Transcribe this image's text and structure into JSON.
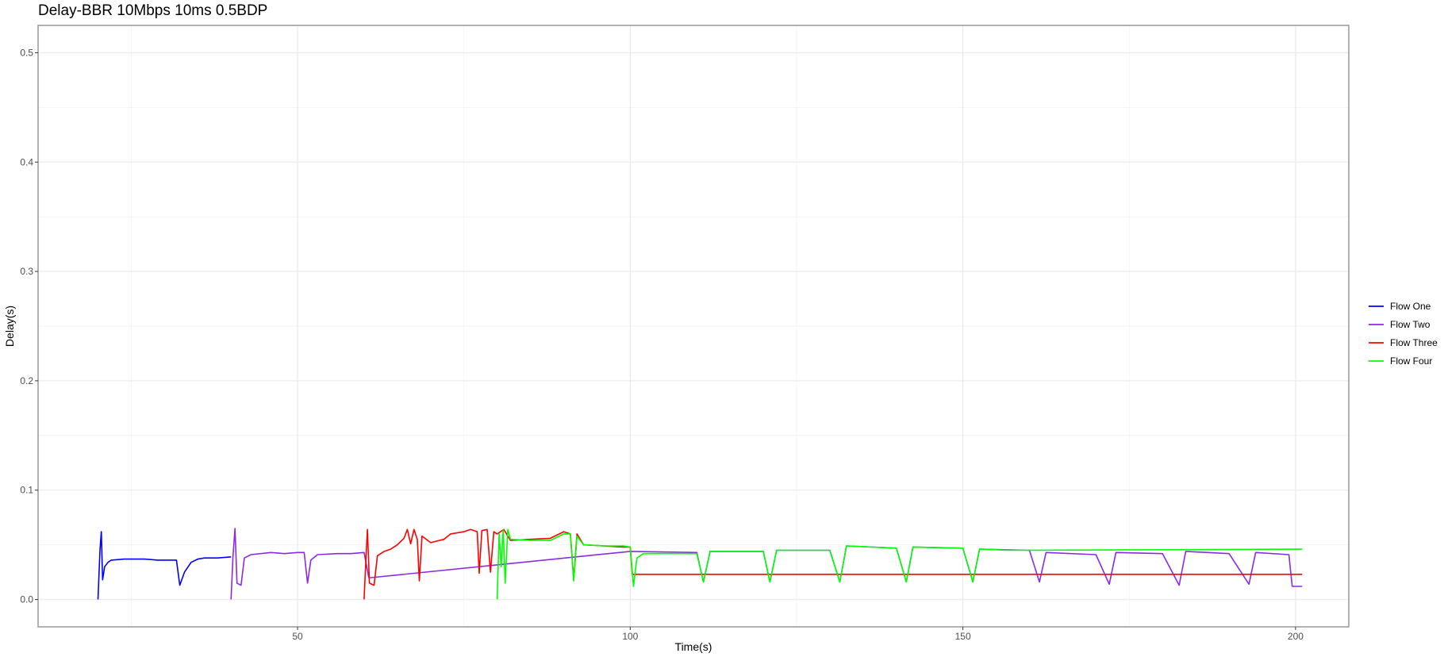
{
  "chart_data": {
    "type": "line",
    "title": "Delay-BBR 10Mbps 10ms 0.5BDP",
    "xlabel": "Time(s)",
    "ylabel": "Delay(s)",
    "xlim": [
      11,
      208
    ],
    "ylim": [
      -0.025,
      0.525
    ],
    "x_ticks": [
      50,
      100,
      150,
      200
    ],
    "y_ticks": [
      0.0,
      0.1,
      0.2,
      0.3,
      0.4,
      0.5
    ],
    "x_tick_labels": [
      "50",
      "100",
      "150",
      "200"
    ],
    "y_tick_labels": [
      "0.0",
      "0.1",
      "0.2",
      "0.3",
      "0.4",
      "0.5"
    ],
    "grid": true,
    "legend_position": "right",
    "series": [
      {
        "name": "Flow One",
        "color": "#0000ff",
        "points": [
          [
            20,
            0.0
          ],
          [
            20.3,
            0.045
          ],
          [
            20.5,
            0.062
          ],
          [
            20.7,
            0.018
          ],
          [
            21,
            0.03
          ],
          [
            21.5,
            0.034
          ],
          [
            22,
            0.036
          ],
          [
            24,
            0.037
          ],
          [
            27,
            0.037
          ],
          [
            29,
            0.036
          ],
          [
            31,
            0.036
          ],
          [
            31.8,
            0.036
          ],
          [
            32.3,
            0.013
          ],
          [
            33,
            0.025
          ],
          [
            34,
            0.034
          ],
          [
            35,
            0.037
          ],
          [
            36,
            0.038
          ],
          [
            38,
            0.038
          ],
          [
            40,
            0.039
          ]
        ]
      },
      {
        "name": "Flow Two",
        "color": "#8a2be2",
        "points": [
          [
            40,
            0.0
          ],
          [
            40.3,
            0.04
          ],
          [
            40.6,
            0.065
          ],
          [
            40.9,
            0.015
          ],
          [
            41.5,
            0.013
          ],
          [
            42,
            0.038
          ],
          [
            43,
            0.041
          ],
          [
            46,
            0.043
          ],
          [
            48,
            0.042
          ],
          [
            50,
            0.043
          ],
          [
            51,
            0.043
          ],
          [
            51.5,
            0.015
          ],
          [
            52,
            0.036
          ],
          [
            53,
            0.041
          ],
          [
            56,
            0.042
          ],
          [
            58,
            0.042
          ],
          [
            60,
            0.043
          ],
          [
            60.7,
            0.02
          ],
          [
            61,
            0.02
          ],
          [
            100,
            0.044
          ],
          [
            110,
            0.043
          ],
          [
            111,
            0.016
          ],
          [
            112,
            0.044
          ],
          [
            120,
            0.044
          ],
          [
            121,
            0.016
          ],
          [
            122,
            0.045
          ],
          [
            130,
            0.045
          ],
          [
            131.5,
            0.016
          ],
          [
            132.5,
            0.049
          ],
          [
            140,
            0.047
          ],
          [
            141.5,
            0.016
          ],
          [
            142.5,
            0.048
          ],
          [
            150,
            0.047
          ],
          [
            151.5,
            0.016
          ],
          [
            152.5,
            0.046
          ],
          [
            160,
            0.045
          ],
          [
            161.5,
            0.016
          ],
          [
            162.5,
            0.043
          ],
          [
            170,
            0.041
          ],
          [
            172,
            0.014
          ],
          [
            173,
            0.043
          ],
          [
            180,
            0.042
          ],
          [
            182.5,
            0.013
          ],
          [
            183.5,
            0.044
          ],
          [
            190,
            0.042
          ],
          [
            193,
            0.014
          ],
          [
            194,
            0.043
          ],
          [
            199,
            0.041
          ],
          [
            199.5,
            0.012
          ],
          [
            201,
            0.012
          ]
        ]
      },
      {
        "name": "Flow Three",
        "color": "#ff0000",
        "points": [
          [
            60,
            0.0
          ],
          [
            60.3,
            0.04
          ],
          [
            60.5,
            0.064
          ],
          [
            60.8,
            0.015
          ],
          [
            61.5,
            0.013
          ],
          [
            62,
            0.04
          ],
          [
            63,
            0.044
          ],
          [
            64,
            0.046
          ],
          [
            65,
            0.05
          ],
          [
            66,
            0.056
          ],
          [
            66.5,
            0.064
          ],
          [
            67,
            0.051
          ],
          [
            67.5,
            0.064
          ],
          [
            68,
            0.055
          ],
          [
            68.3,
            0.017
          ],
          [
            68.7,
            0.058
          ],
          [
            70,
            0.052
          ],
          [
            72,
            0.055
          ],
          [
            73,
            0.06
          ],
          [
            75,
            0.062
          ],
          [
            76,
            0.064
          ],
          [
            77,
            0.062
          ],
          [
            77.3,
            0.024
          ],
          [
            77.7,
            0.063
          ],
          [
            78.5,
            0.064
          ],
          [
            79,
            0.025
          ],
          [
            79.5,
            0.062
          ],
          [
            80,
            0.06
          ],
          [
            81,
            0.064
          ],
          [
            82,
            0.054
          ],
          [
            85,
            0.055
          ],
          [
            88,
            0.056
          ],
          [
            90,
            0.062
          ],
          [
            91,
            0.06
          ],
          [
            91.5,
            0.018
          ],
          [
            92,
            0.06
          ],
          [
            93,
            0.05
          ],
          [
            96,
            0.049
          ],
          [
            99,
            0.048
          ],
          [
            100,
            0.048
          ],
          [
            100.3,
            0.023
          ],
          [
            201,
            0.023
          ]
        ]
      },
      {
        "name": "Flow Four",
        "color": "#00ff00",
        "points": [
          [
            80,
            0.0
          ],
          [
            80.3,
            0.06
          ],
          [
            80.6,
            0.03
          ],
          [
            80.9,
            0.064
          ],
          [
            81.2,
            0.015
          ],
          [
            81.6,
            0.064
          ],
          [
            82,
            0.055
          ],
          [
            85,
            0.054
          ],
          [
            88,
            0.054
          ],
          [
            90,
            0.06
          ],
          [
            91,
            0.06
          ],
          [
            91.5,
            0.017
          ],
          [
            92,
            0.058
          ],
          [
            93,
            0.05
          ],
          [
            96,
            0.049
          ],
          [
            99,
            0.049
          ],
          [
            100,
            0.048
          ],
          [
            100.5,
            0.012
          ],
          [
            101,
            0.038
          ],
          [
            102,
            0.042
          ],
          [
            106,
            0.042
          ],
          [
            110,
            0.042
          ],
          [
            111,
            0.016
          ],
          [
            112,
            0.044
          ],
          [
            120,
            0.044
          ],
          [
            121,
            0.016
          ],
          [
            122,
            0.045
          ],
          [
            130,
            0.045
          ],
          [
            131.5,
            0.016
          ],
          [
            132.5,
            0.049
          ],
          [
            140,
            0.047
          ],
          [
            141.5,
            0.016
          ],
          [
            142.5,
            0.048
          ],
          [
            150,
            0.047
          ],
          [
            151.5,
            0.016
          ],
          [
            152.5,
            0.046
          ],
          [
            157,
            0.045
          ],
          [
            201,
            0.046
          ]
        ]
      }
    ]
  }
}
